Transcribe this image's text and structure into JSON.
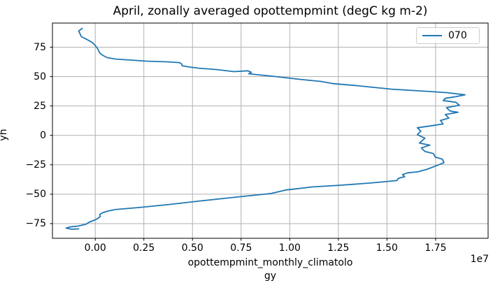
{
  "chart_data": {
    "type": "line",
    "title": "April, zonally averaged opottempmint (degC kg m-2)",
    "xlabel_lines": [
      "opottempmint_monthly_climatolo",
      "gy"
    ],
    "xlabel_full": "opottempmint_monthly_climatology",
    "ylabel": "yh",
    "x_offset_text": "1e7",
    "x_scale_factor": 10000000,
    "xlim": [
      -0.22,
      2.02
    ],
    "ylim": [
      -87.5,
      95.5
    ],
    "xtick_values": [
      0,
      0.25,
      0.5,
      0.75,
      1.0,
      1.25,
      1.5,
      1.75
    ],
    "xtick_labels": [
      "0.00",
      "0.25",
      "0.50",
      "0.75",
      "1.00",
      "1.25",
      "1.50",
      "1.75"
    ],
    "ytick_values": [
      75,
      50,
      25,
      0,
      -25,
      -50,
      -75
    ],
    "ytick_labels": [
      "75",
      "50",
      "25",
      "0",
      "−25",
      "−50",
      "−75"
    ],
    "grid": true,
    "grid_color": "#b0b0b0",
    "spine_color": "#000000",
    "legend_position": "upper right",
    "legend": {
      "entries": [
        {
          "label": "070",
          "color": "#1f77b4"
        }
      ]
    },
    "series": [
      {
        "name": "070",
        "color": "#1f77b4",
        "points_units": "x in 1e7 degC kg m-2, y in yh",
        "points": [
          [
            -0.067,
            91.0
          ],
          [
            -0.085,
            88.7
          ],
          [
            -0.078,
            86.3
          ],
          [
            -0.071,
            83.9
          ],
          [
            -0.049,
            82.1
          ],
          [
            -0.024,
            79.8
          ],
          [
            -0.013,
            78.6
          ],
          [
            0.001,
            76.2
          ],
          [
            0.012,
            73.8
          ],
          [
            0.019,
            71.4
          ],
          [
            0.026,
            69.6
          ],
          [
            0.041,
            67.9
          ],
          [
            0.062,
            66.1
          ],
          [
            0.105,
            64.9
          ],
          [
            0.156,
            64.3
          ],
          [
            0.264,
            63.1
          ],
          [
            0.372,
            62.5
          ],
          [
            0.432,
            61.9
          ],
          [
            0.443,
            61.0
          ],
          [
            0.447,
            59.2
          ],
          [
            0.49,
            58.0
          ],
          [
            0.534,
            57.1
          ],
          [
            0.623,
            56.0
          ],
          [
            0.713,
            54.2
          ],
          [
            0.785,
            54.9
          ],
          [
            0.803,
            53.6
          ],
          [
            0.789,
            52.4
          ],
          [
            0.821,
            51.8
          ],
          [
            0.929,
            50.0
          ],
          [
            1.055,
            47.6
          ],
          [
            1.163,
            45.8
          ],
          [
            1.224,
            44.0
          ],
          [
            1.343,
            42.3
          ],
          [
            1.523,
            39.3
          ],
          [
            1.702,
            37.5
          ],
          [
            1.81,
            36.3
          ],
          [
            1.901,
            34.5
          ],
          [
            1.846,
            32.7
          ],
          [
            1.8,
            31.5
          ],
          [
            1.789,
            29.6
          ],
          [
            1.854,
            28.2
          ],
          [
            1.872,
            25.6
          ],
          [
            1.806,
            23.6
          ],
          [
            1.824,
            20.7
          ],
          [
            1.865,
            19.6
          ],
          [
            1.8,
            17.7
          ],
          [
            1.818,
            14.7
          ],
          [
            1.775,
            12.7
          ],
          [
            1.788,
            9.7
          ],
          [
            1.721,
            8.0
          ],
          [
            1.656,
            6.5
          ],
          [
            1.674,
            3.6
          ],
          [
            1.656,
            0.6
          ],
          [
            1.695,
            -2.4
          ],
          [
            1.667,
            -6.5
          ],
          [
            1.721,
            -8.3
          ],
          [
            1.677,
            -10.7
          ],
          [
            1.695,
            -13.7
          ],
          [
            1.739,
            -15.5
          ],
          [
            1.749,
            -18.5
          ],
          [
            1.785,
            -20.2
          ],
          [
            1.793,
            -23.2
          ],
          [
            1.757,
            -25.6
          ],
          [
            1.71,
            -28.6
          ],
          [
            1.659,
            -31.0
          ],
          [
            1.606,
            -31.8
          ],
          [
            1.58,
            -33.3
          ],
          [
            1.591,
            -35.1
          ],
          [
            1.558,
            -36.6
          ],
          [
            1.551,
            -38.4
          ],
          [
            1.494,
            -39.3
          ],
          [
            1.415,
            -40.5
          ],
          [
            1.271,
            -42.3
          ],
          [
            1.116,
            -43.8
          ],
          [
            0.983,
            -46.4
          ],
          [
            0.904,
            -49.4
          ],
          [
            0.731,
            -52.4
          ],
          [
            0.526,
            -56.0
          ],
          [
            0.372,
            -58.9
          ],
          [
            0.228,
            -61.3
          ],
          [
            0.102,
            -63.1
          ],
          [
            0.066,
            -64.3
          ],
          [
            0.037,
            -65.8
          ],
          [
            0.023,
            -67.3
          ],
          [
            0.026,
            -69.0
          ],
          [
            0.012,
            -70.8
          ],
          [
            -0.003,
            -72.0
          ],
          [
            -0.031,
            -73.8
          ],
          [
            -0.049,
            -75.6
          ],
          [
            -0.089,
            -77.1
          ],
          [
            -0.132,
            -77.9
          ],
          [
            -0.15,
            -78.9
          ],
          [
            -0.121,
            -79.8
          ],
          [
            -0.085,
            -79.5
          ]
        ]
      }
    ]
  }
}
